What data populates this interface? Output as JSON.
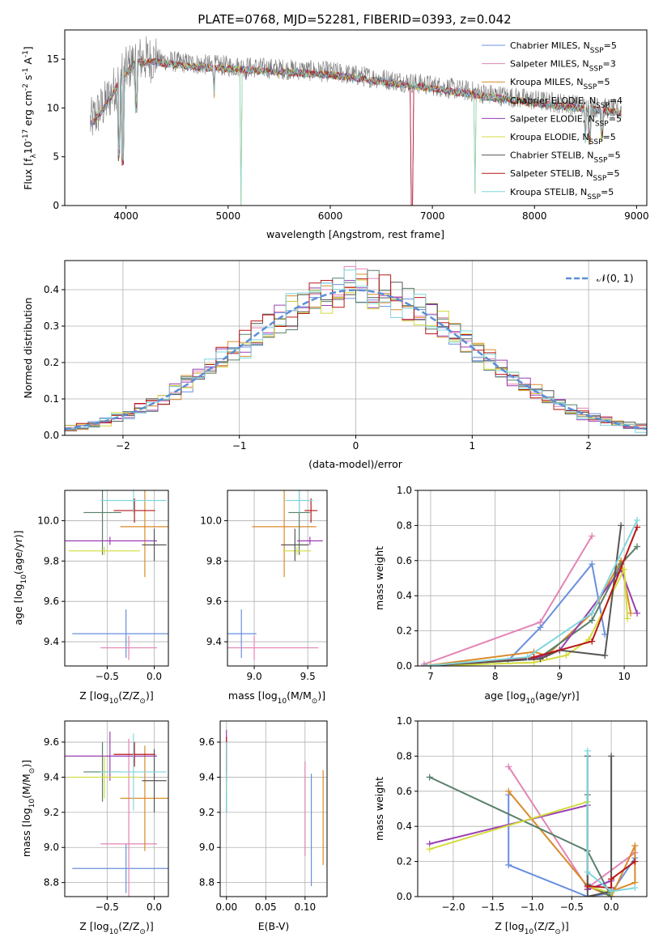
{
  "figure": {
    "title": "PLATE=0768, MJD=52281, FIBERID=0393, z=0.042"
  },
  "series_styles": [
    {
      "name_base": "Chabrier MILES",
      "nssp": "5",
      "color": "#6a8fde"
    },
    {
      "name_base": "Salpeter MILES",
      "nssp": "3",
      "color": "#e384b4"
    },
    {
      "name_base": "Kroupa MILES",
      "nssp": "5",
      "color": "#d98a2a"
    },
    {
      "name_base": "Chabrier ELODIE",
      "nssp": "4",
      "color": "#58806a"
    },
    {
      "name_base": "Salpeter ELODIE",
      "nssp": "5",
      "color": "#9b3fb3"
    },
    {
      "name_base": "Kroupa ELODIE",
      "nssp": "5",
      "color": "#d4dc3c"
    },
    {
      "name_base": "Chabrier STELIB",
      "nssp": "5",
      "color": "#555555"
    },
    {
      "name_base": "Salpeter STELIB",
      "nssp": "5",
      "color": "#b81818"
    },
    {
      "name_base": "Kroupa STELIB",
      "nssp": "5",
      "color": "#7fd7de"
    }
  ],
  "chart_data": [
    {
      "id": "spectrum",
      "type": "line",
      "xlabel": "wavelength [Angstrom, rest frame]",
      "ylabel_main": "Flux [f",
      "ylabel_sub": "λ",
      "ylabel_mid": "10",
      "ylabel_sup1": "-17",
      "ylabel_unit": " erg cm",
      "ylabel_sup2": "-2",
      "ylabel_s": " s",
      "ylabel_sup3": "-1",
      "ylabel_A": " A",
      "ylabel_sup4": "-1",
      "ylabel_end": "]",
      "xlim": [
        3400,
        9100
      ],
      "ylim": [
        0,
        18
      ],
      "xticks": [
        4000,
        5000,
        6000,
        7000,
        8000,
        9000
      ],
      "yticks": [
        0,
        5,
        10,
        15
      ],
      "legend_position": "top-right",
      "data_wavelength_range": [
        3650,
        8850
      ],
      "continuum": [
        [
          3650,
          8.5
        ],
        [
          3800,
          10.5
        ],
        [
          3950,
          13.2
        ],
        [
          4100,
          15.0
        ],
        [
          4300,
          15.0
        ],
        [
          4500,
          14.7
        ],
        [
          4800,
          14.4
        ],
        [
          5000,
          14.3
        ],
        [
          5500,
          14.0
        ],
        [
          6000,
          13.7
        ],
        [
          6500,
          13.0
        ],
        [
          7000,
          12.3
        ],
        [
          7500,
          11.5
        ],
        [
          8000,
          10.8
        ],
        [
          8500,
          10.2
        ],
        [
          8850,
          9.8
        ]
      ],
      "notable_dips": [
        [
          3934,
          4.5
        ],
        [
          3969,
          4.0
        ],
        [
          4102,
          9.5
        ],
        [
          4861,
          11.0
        ],
        [
          5128,
          0.0
        ],
        [
          5175,
          12.8
        ],
        [
          6800,
          0.0
        ],
        [
          7420,
          1.2
        ],
        [
          8498,
          6.0
        ],
        [
          8542,
          6.2
        ],
        [
          8662,
          6.5
        ]
      ]
    },
    {
      "id": "residual_hist",
      "type": "histogram",
      "xlabel": "(data-model)/error",
      "ylabel": "Normed distribution",
      "xlim": [
        -2.5,
        2.5
      ],
      "ylim": [
        0,
        0.48
      ],
      "xticks": [
        -2,
        -1,
        0,
        1,
        2
      ],
      "yticks": [
        0.0,
        0.1,
        0.2,
        0.3,
        0.4
      ],
      "bin_width": 0.1,
      "reference_label": "𝒩(0, 1)",
      "reference": "normal(0,1)",
      "legend_position": "top-right"
    },
    {
      "id": "age_vs_Z",
      "type": "errorbar",
      "xlabel": "Z [log",
      "xlabel_sub": "10",
      "xlabel_rest": "(Z/Z",
      "xlabel_sun": "⊙",
      "xlabel_end": ")]",
      "ylabel": "age  [log",
      "ylabel_sub": "10",
      "ylabel_rest": "(age/yr)]",
      "xlim": [
        -0.95,
        0.15
      ],
      "ylim": [
        9.28,
        10.15
      ],
      "xticks": [
        -0.5,
        0.0
      ],
      "xtick_labels": [
        "−0.5",
        "0.0"
      ],
      "yticks": [
        9.4,
        9.6,
        9.8,
        10.0
      ],
      "yticklabels": [
        "9.4",
        "9.6",
        "9.8",
        "10.0"
      ],
      "points": [
        {
          "s": 0,
          "x": -0.3,
          "xerr": 0.57,
          "y": 9.44,
          "yerr": 0.12
        },
        {
          "s": 1,
          "x": -0.27,
          "xerr": 0.3,
          "y": 9.37,
          "yerr": 0.06
        },
        {
          "s": 2,
          "x": -0.1,
          "xerr": 0.26,
          "y": 9.97,
          "yerr": 0.25
        },
        {
          "s": 3,
          "x": -0.55,
          "xerr": 0.2,
          "y": 10.04,
          "yerr": 0.21
        },
        {
          "s": 4,
          "x": -0.47,
          "xerr": 0.5,
          "y": 9.9,
          "yerr": 0.02
        },
        {
          "s": 5,
          "x": -0.53,
          "xerr": 0.38,
          "y": 9.85,
          "yerr": 0.02
        },
        {
          "s": 6,
          "x": 0.0,
          "xerr": 0.13,
          "y": 9.88,
          "yerr": 0.08
        },
        {
          "s": 7,
          "x": -0.21,
          "xerr": 0.22,
          "y": 10.05,
          "yerr": 0.06
        },
        {
          "s": 8,
          "x": -0.22,
          "xerr": 0.35,
          "y": 10.1,
          "yerr": 0.06
        }
      ]
    },
    {
      "id": "age_vs_mass",
      "type": "errorbar",
      "xlabel": "mass [log",
      "xlabel_sub": "10",
      "xlabel_rest": "(M/M",
      "xlabel_sun": "⊙",
      "xlabel_end": ")]",
      "xlim": [
        8.75,
        9.68
      ],
      "ylim": [
        9.28,
        10.15
      ],
      "xticks": [
        9.0,
        9.5
      ],
      "xtick_labels": [
        "9.0",
        "9.5"
      ],
      "yticks": [
        9.4,
        9.6,
        9.8,
        10.0
      ],
      "yticklabels": [
        "9.4",
        "9.6",
        "9.8",
        "10.0"
      ],
      "points": [
        {
          "s": 0,
          "x": 8.88,
          "xerr": 0.14,
          "y": 9.44,
          "yerr": 0.12
        },
        {
          "s": 1,
          "x": 9.0,
          "xerr": 0.6,
          "y": 9.37,
          "yerr": 0.06
        },
        {
          "s": 2,
          "x": 9.28,
          "xerr": 0.3,
          "y": 9.97,
          "yerr": 0.25
        },
        {
          "s": 3,
          "x": 9.42,
          "xerr": 0.1,
          "y": 10.04,
          "yerr": 0.21
        },
        {
          "s": 4,
          "x": 9.52,
          "xerr": 0.12,
          "y": 9.9,
          "yerr": 0.02
        },
        {
          "s": 5,
          "x": 9.4,
          "xerr": 0.13,
          "y": 9.85,
          "yerr": 0.02
        },
        {
          "s": 6,
          "x": 9.38,
          "xerr": 0.13,
          "y": 9.88,
          "yerr": 0.08
        },
        {
          "s": 7,
          "x": 9.53,
          "xerr": 0.06,
          "y": 10.05,
          "yerr": 0.06
        },
        {
          "s": 8,
          "x": 9.42,
          "xerr": 0.13,
          "y": 10.1,
          "yerr": 0.06
        }
      ]
    },
    {
      "id": "weight_vs_age",
      "type": "line",
      "xlabel": "age  [log",
      "xlabel_sub": "10",
      "xlabel_rest": "(age/yr)]",
      "ylabel": "mass weight",
      "xlim": [
        6.8,
        10.35
      ],
      "ylim": [
        0,
        1.0
      ],
      "xticks": [
        7,
        8,
        9,
        10
      ],
      "xtick_labels": [
        "7",
        "8",
        "9",
        "10"
      ],
      "yticks": [
        0.0,
        0.2,
        0.4,
        0.6,
        0.8,
        1.0
      ],
      "series": [
        {
          "s": 0,
          "points": [
            [
              6.9,
              0.0
            ],
            [
              8.2,
              0.03
            ],
            [
              8.7,
              0.22
            ],
            [
              9.5,
              0.58
            ],
            [
              9.7,
              0.18
            ]
          ]
        },
        {
          "s": 1,
          "points": [
            [
              6.9,
              0.01
            ],
            [
              8.7,
              0.25
            ],
            [
              9.5,
              0.74
            ]
          ]
        },
        {
          "s": 2,
          "points": [
            [
              6.9,
              0.0
            ],
            [
              8.6,
              0.08
            ],
            [
              8.8,
              0.06
            ],
            [
              9.5,
              0.3
            ],
            [
              9.95,
              0.6
            ],
            [
              10.1,
              0.3
            ]
          ]
        },
        {
          "s": 3,
          "points": [
            [
              7.0,
              0.0
            ],
            [
              8.7,
              0.05
            ],
            [
              9.5,
              0.26
            ],
            [
              9.95,
              0.58
            ],
            [
              10.2,
              0.68
            ]
          ]
        },
        {
          "s": 4,
          "points": [
            [
              7.0,
              0.0
            ],
            [
              8.6,
              0.04
            ],
            [
              9.0,
              0.09
            ],
            [
              9.95,
              0.55
            ],
            [
              10.2,
              0.3
            ]
          ]
        },
        {
          "s": 5,
          "points": [
            [
              7.0,
              0.0
            ],
            [
              8.6,
              0.02
            ],
            [
              9.1,
              0.06
            ],
            [
              9.45,
              0.15
            ],
            [
              10.0,
              0.55
            ],
            [
              10.05,
              0.27
            ]
          ]
        },
        {
          "s": 6,
          "points": [
            [
              6.9,
              0.0
            ],
            [
              8.7,
              0.04
            ],
            [
              9.0,
              0.09
            ],
            [
              9.7,
              0.06
            ],
            [
              9.95,
              0.8
            ]
          ]
        },
        {
          "s": 7,
          "points": [
            [
              6.9,
              0.0
            ],
            [
              8.6,
              0.05
            ],
            [
              9.5,
              0.14
            ],
            [
              10.2,
              0.79
            ]
          ]
        },
        {
          "s": 8,
          "points": [
            [
              6.9,
              0.0
            ],
            [
              8.5,
              0.05
            ],
            [
              9.5,
              0.3
            ],
            [
              10.2,
              0.83
            ]
          ]
        }
      ]
    },
    {
      "id": "mass_vs_Z",
      "type": "errorbar",
      "xlabel": "Z [log",
      "xlabel_sub": "10",
      "xlabel_rest": "(Z/Z",
      "xlabel_sun": "⊙",
      "xlabel_end": ")]",
      "ylabel": "mass [log",
      "ylabel_sub": "10",
      "ylabel_rest": "(M/M",
      "ylabel_sun": "⊙",
      "ylabel_end": ")]",
      "xlim": [
        -0.95,
        0.15
      ],
      "ylim": [
        8.72,
        9.72
      ],
      "xticks": [
        -0.5,
        0.0
      ],
      "xtick_labels": [
        "−0.5",
        "0.0"
      ],
      "yticks": [
        8.8,
        9.0,
        9.2,
        9.4,
        9.6
      ],
      "yticklabels": [
        "8.8",
        "9.0",
        "9.2",
        "9.4",
        "9.6"
      ],
      "points": [
        {
          "s": 0,
          "x": -0.3,
          "xerr": 0.57,
          "y": 8.88,
          "yerr": 0.14
        },
        {
          "s": 1,
          "x": -0.27,
          "xerr": 0.3,
          "y": 9.02,
          "yerr": 0.6
        },
        {
          "s": 2,
          "x": -0.1,
          "xerr": 0.26,
          "y": 9.28,
          "yerr": 0.3
        },
        {
          "s": 3,
          "x": -0.55,
          "xerr": 0.2,
          "y": 9.43,
          "yerr": 0.17
        },
        {
          "s": 4,
          "x": -0.47,
          "xerr": 0.5,
          "y": 9.52,
          "yerr": 0.14
        },
        {
          "s": 5,
          "x": -0.53,
          "xerr": 0.38,
          "y": 9.4,
          "yerr": 0.12
        },
        {
          "s": 6,
          "x": 0.0,
          "xerr": 0.13,
          "y": 9.38,
          "yerr": 0.18
        },
        {
          "s": 7,
          "x": -0.21,
          "xerr": 0.22,
          "y": 9.53,
          "yerr": 0.07
        },
        {
          "s": 8,
          "x": -0.22,
          "xerr": 0.35,
          "y": 9.43,
          "yerr": 0.22
        }
      ]
    },
    {
      "id": "mass_vs_ebv",
      "type": "errorbar",
      "xlabel": "E(B-V)",
      "xlim": [
        -0.008,
        0.128
      ],
      "ylim": [
        8.72,
        9.72
      ],
      "xticks": [
        0.0,
        0.05,
        0.1
      ],
      "xtick_labels": [
        "0.00",
        "0.05",
        "0.10"
      ],
      "yticks": [
        8.8,
        9.0,
        9.2,
        9.4,
        9.6
      ],
      "yticklabels": [
        "8.8",
        "9.0",
        "9.2",
        "9.4",
        "9.6"
      ],
      "points": [
        {
          "s": 0,
          "x": 0.108,
          "xerr": 0.0,
          "y": 9.1,
          "yerr": 0.32
        },
        {
          "s": 1,
          "x": 0.1,
          "xerr": 0.0,
          "y": 9.22,
          "yerr": 0.27
        },
        {
          "s": 2,
          "x": 0.123,
          "xerr": 0.0,
          "y": 9.17,
          "yerr": 0.27
        },
        {
          "s": 3,
          "x": 0.0,
          "xerr": 0.0,
          "y": 9.35,
          "yerr": 0.15
        },
        {
          "s": 4,
          "x": 0.0,
          "xerr": 0.0,
          "y": 9.55,
          "yerr": 0.12
        },
        {
          "s": 5,
          "x": 0.0,
          "xerr": 0.0,
          "y": 9.42,
          "yerr": 0.1
        },
        {
          "s": 6,
          "x": 0.0,
          "xerr": 0.0,
          "y": 9.48,
          "yerr": 0.1
        },
        {
          "s": 7,
          "x": 0.0,
          "xerr": 0.0,
          "y": 9.53,
          "yerr": 0.1
        },
        {
          "s": 8,
          "x": 0.0,
          "xerr": 0.0,
          "y": 9.4,
          "yerr": 0.2
        }
      ]
    },
    {
      "id": "weight_vs_Z",
      "type": "line",
      "xlabel": "Z [log",
      "xlabel_sub": "10",
      "xlabel_rest": "(Z/Z",
      "xlabel_sun": "⊙",
      "xlabel_end": ")]",
      "ylabel": "mass weight",
      "xlim": [
        -2.45,
        0.45
      ],
      "ylim": [
        0,
        1.0
      ],
      "xticks": [
        -2.0,
        -1.5,
        -1.0,
        -0.5,
        0.0
      ],
      "xtick_labels": [
        "−2.0",
        "−1.5",
        "−1.0",
        "−0.5",
        "0.0"
      ],
      "yticks": [
        0.0,
        0.2,
        0.4,
        0.6,
        0.8,
        1.0
      ],
      "series": [
        {
          "s": 0,
          "points": [
            [
              -1.3,
              0.58
            ],
            [
              -1.3,
              0.18
            ],
            [
              -0.3,
              0.0
            ],
            [
              0.0,
              0.02
            ],
            [
              0.3,
              0.22
            ]
          ]
        },
        {
          "s": 1,
          "points": [
            [
              -1.3,
              0.74
            ],
            [
              -0.3,
              0.05
            ],
            [
              0.3,
              0.25
            ]
          ]
        },
        {
          "s": 2,
          "points": [
            [
              -1.3,
              0.6
            ],
            [
              -0.3,
              0.06
            ],
            [
              0.0,
              0.0
            ],
            [
              0.3,
              0.29
            ],
            [
              0.3,
              0.08
            ],
            [
              0.0,
              0.03
            ]
          ]
        },
        {
          "s": 3,
          "points": [
            [
              -2.3,
              0.68
            ],
            [
              -0.3,
              0.26
            ],
            [
              0.0,
              0.0
            ],
            [
              -0.3,
              0.07
            ],
            [
              -0.3,
              0.58
            ]
          ]
        },
        {
          "s": 4,
          "points": [
            [
              -2.3,
              0.3
            ],
            [
              -0.3,
              0.52
            ],
            [
              -0.3,
              0.04
            ],
            [
              0.0,
              0.09
            ]
          ]
        },
        {
          "s": 5,
          "points": [
            [
              -2.3,
              0.27
            ],
            [
              -0.3,
              0.54
            ],
            [
              -0.3,
              0.06
            ],
            [
              0.0,
              0.02
            ]
          ]
        },
        {
          "s": 6,
          "points": [
            [
              0.0,
              0.8
            ],
            [
              0.0,
              0.03
            ],
            [
              -0.3,
              0.0
            ],
            [
              -0.3,
              0.8
            ]
          ]
        },
        {
          "s": 7,
          "points": [
            [
              -0.3,
              0.06
            ],
            [
              0.0,
              0.05
            ],
            [
              0.0,
              0.1
            ],
            [
              0.3,
              0.2
            ]
          ]
        },
        {
          "s": 8,
          "points": [
            [
              -0.3,
              0.83
            ],
            [
              -0.3,
              0.14
            ],
            [
              0.0,
              0.03
            ],
            [
              0.3,
              0.05
            ]
          ]
        }
      ]
    }
  ]
}
